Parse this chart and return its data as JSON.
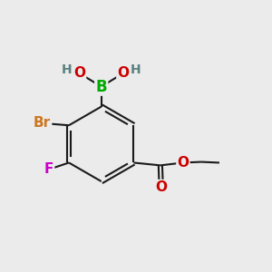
{
  "bg_color": "#ebebeb",
  "bond_color": "#1a1a1a",
  "bond_width": 1.5,
  "colors": {
    "C": "#1a1a1a",
    "B": "#00aa00",
    "O": "#cc0000",
    "H": "#5a8080",
    "Br": "#cc7722",
    "F": "#cc00cc",
    "bond": "#1a1a1a"
  }
}
